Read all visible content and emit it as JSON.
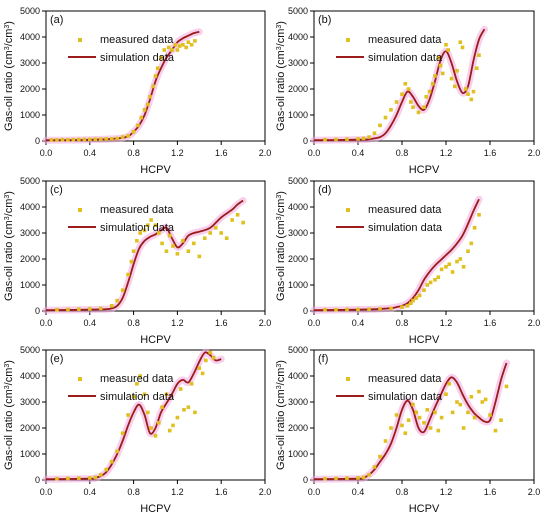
{
  "figure": {
    "x_axis_label": "HCPV",
    "y_axis_label": "Gas-oil ratio (cm",
    "y_axis_label_sup1": "3",
    "y_axis_label_mid": "/cm",
    "y_axis_label_sup2": "3",
    "y_axis_label_end": ")",
    "legend_measured": "measured data",
    "legend_simulation": "simulation data",
    "x_ticks": [
      "0.0",
      "0.4",
      "0.8",
      "1.2",
      "1.6",
      "2.0"
    ],
    "y_ticks": [
      "0",
      "1000",
      "2000",
      "3000",
      "4000",
      "5000"
    ],
    "colors": {
      "measured": "#e0c020",
      "simulation": "#9b1c1c",
      "glow": "#f2a8dc"
    }
  },
  "chart_data": [
    {
      "type": "scatter",
      "panel_label": "(a)",
      "xlabel": "HCPV",
      "ylabel": "Gas-oil ratio (cm3/cm3)",
      "xlim": [
        0,
        2
      ],
      "ylim": [
        0,
        5000
      ],
      "legend_position": "upper-left",
      "series": [
        {
          "name": "measured data",
          "kind": "points",
          "x": [
            0.05,
            0.1,
            0.15,
            0.2,
            0.25,
            0.3,
            0.35,
            0.4,
            0.45,
            0.5,
            0.55,
            0.6,
            0.65,
            0.7,
            0.75,
            0.8,
            0.84,
            0.87,
            0.9,
            0.93,
            0.95,
            0.98,
            1.0,
            1.02,
            1.05,
            1.08,
            1.12,
            1.15,
            1.18,
            1.2,
            1.22,
            1.25,
            1.28,
            1.3,
            1.33,
            1.36
          ],
          "y": [
            40,
            40,
            50,
            50,
            50,
            60,
            60,
            60,
            70,
            70,
            80,
            80,
            100,
            150,
            200,
            350,
            600,
            900,
            1200,
            1400,
            1700,
            2100,
            2500,
            2800,
            3200,
            3500,
            3600,
            3500,
            3700,
            3500,
            3650,
            3700,
            3600,
            3800,
            3700,
            3850
          ]
        },
        {
          "name": "simulation data",
          "kind": "line",
          "x": [
            0,
            0.3,
            0.5,
            0.6,
            0.7,
            0.75,
            0.8,
            0.85,
            0.9,
            0.95,
            1.0,
            1.05,
            1.1,
            1.15,
            1.2,
            1.25,
            1.3,
            1.35,
            1.4
          ],
          "y": [
            30,
            40,
            60,
            80,
            120,
            180,
            350,
            600,
            1000,
            1600,
            2300,
            2800,
            3200,
            3500,
            3800,
            3950,
            4050,
            4150,
            4200
          ]
        }
      ]
    },
    {
      "type": "scatter",
      "panel_label": "(b)",
      "xlabel": "HCPV",
      "ylabel": "Gas-oil ratio (cm3/cm3)",
      "xlim": [
        0,
        2
      ],
      "ylim": [
        0,
        5000
      ],
      "legend_position": "upper-left",
      "series": [
        {
          "name": "measured data",
          "kind": "points",
          "x": [
            0.1,
            0.2,
            0.3,
            0.4,
            0.45,
            0.5,
            0.55,
            0.6,
            0.65,
            0.7,
            0.75,
            0.8,
            0.83,
            0.86,
            0.88,
            0.9,
            0.95,
            1.0,
            1.02,
            1.05,
            1.08,
            1.1,
            1.13,
            1.15,
            1.17,
            1.2,
            1.22,
            1.25,
            1.28,
            1.3,
            1.33,
            1.35,
            1.38,
            1.4,
            1.43,
            1.45,
            1.48,
            1.5
          ],
          "y": [
            50,
            60,
            70,
            80,
            100,
            150,
            300,
            600,
            900,
            1200,
            1500,
            1800,
            2200,
            2000,
            1500,
            1300,
            1100,
            1300,
            1700,
            1900,
            2200,
            2500,
            3200,
            2900,
            2600,
            3700,
            3500,
            2400,
            2100,
            2700,
            3800,
            3600,
            2000,
            1800,
            1600,
            1900,
            2800,
            3300
          ]
        },
        {
          "name": "simulation data",
          "kind": "line",
          "x": [
            0,
            0.4,
            0.5,
            0.6,
            0.65,
            0.7,
            0.75,
            0.8,
            0.85,
            0.9,
            0.95,
            1.0,
            1.05,
            1.1,
            1.15,
            1.2,
            1.25,
            1.3,
            1.35,
            1.4,
            1.45,
            1.5,
            1.55
          ],
          "y": [
            30,
            50,
            70,
            150,
            300,
            600,
            1000,
            1500,
            1900,
            1700,
            1350,
            1200,
            1600,
            2300,
            3100,
            3450,
            3000,
            2300,
            1850,
            2100,
            3100,
            3900,
            4300
          ]
        }
      ]
    },
    {
      "type": "scatter",
      "panel_label": "(c)",
      "xlabel": "HCPV",
      "ylabel": "Gas-oil ratio (cm3/cm3)",
      "xlim": [
        0,
        2
      ],
      "ylim": [
        0,
        5000
      ],
      "legend_position": "upper-left",
      "series": [
        {
          "name": "measured data",
          "kind": "points",
          "x": [
            0.1,
            0.2,
            0.3,
            0.4,
            0.5,
            0.6,
            0.65,
            0.7,
            0.75,
            0.78,
            0.8,
            0.83,
            0.86,
            0.9,
            0.93,
            0.96,
            1.0,
            1.03,
            1.06,
            1.1,
            1.13,
            1.16,
            1.2,
            1.25,
            1.3,
            1.35,
            1.4,
            1.45,
            1.5,
            1.55,
            1.6,
            1.65,
            1.7,
            1.75,
            1.8
          ],
          "y": [
            50,
            60,
            70,
            80,
            100,
            200,
            400,
            800,
            1400,
            1900,
            2300,
            2700,
            3000,
            3100,
            3300,
            3500,
            3300,
            3000,
            2600,
            2300,
            2900,
            2500,
            2200,
            2700,
            2300,
            2600,
            2100,
            2800,
            3000,
            3200,
            3000,
            2800,
            3500,
            3700,
            3400
          ]
        },
        {
          "name": "simulation data",
          "kind": "line",
          "x": [
            0,
            0.5,
            0.6,
            0.65,
            0.7,
            0.75,
            0.8,
            0.85,
            0.9,
            0.95,
            1.0,
            1.05,
            1.1,
            1.15,
            1.2,
            1.25,
            1.3,
            1.35,
            1.4,
            1.5,
            1.6,
            1.7,
            1.75,
            1.8
          ],
          "y": [
            30,
            60,
            100,
            200,
            500,
            1100,
            1800,
            2400,
            2700,
            2850,
            2950,
            3100,
            3200,
            2800,
            2450,
            2600,
            2900,
            3000,
            3050,
            3200,
            3600,
            3900,
            4100,
            4250
          ]
        }
      ]
    },
    {
      "type": "scatter",
      "panel_label": "(d)",
      "xlabel": "HCPV",
      "ylabel": "Gas-oil ratio (cm3/cm3)",
      "xlim": [
        0,
        2
      ],
      "ylim": [
        0,
        5000
      ],
      "legend_position": "upper-left",
      "series": [
        {
          "name": "measured data",
          "kind": "points",
          "x": [
            0.1,
            0.2,
            0.3,
            0.4,
            0.5,
            0.6,
            0.7,
            0.8,
            0.85,
            0.88,
            0.9,
            0.93,
            0.96,
            1.0,
            1.03,
            1.06,
            1.1,
            1.13,
            1.16,
            1.2,
            1.23,
            1.26,
            1.3,
            1.33,
            1.36,
            1.4,
            1.43,
            1.46,
            1.5
          ],
          "y": [
            50,
            50,
            60,
            60,
            70,
            80,
            100,
            150,
            200,
            300,
            400,
            500,
            600,
            800,
            1000,
            1100,
            1200,
            1300,
            1600,
            1700,
            1800,
            1500,
            1900,
            2000,
            1700,
            2300,
            2600,
            3200,
            3700
          ]
        },
        {
          "name": "simulation data",
          "kind": "line",
          "x": [
            0,
            0.5,
            0.6,
            0.7,
            0.75,
            0.8,
            0.85,
            0.9,
            0.95,
            1.0,
            1.05,
            1.1,
            1.15,
            1.2,
            1.25,
            1.3,
            1.35,
            1.4,
            1.45,
            1.5
          ],
          "y": [
            30,
            60,
            80,
            110,
            150,
            200,
            300,
            500,
            800,
            1200,
            1500,
            1750,
            1950,
            2150,
            2350,
            2600,
            2900,
            3350,
            3850,
            4300
          ]
        }
      ]
    },
    {
      "type": "scatter",
      "panel_label": "(e)",
      "xlabel": "HCPV",
      "ylabel": "Gas-oil ratio (cm3/cm3)",
      "xlim": [
        0,
        2
      ],
      "ylim": [
        0,
        5000
      ],
      "legend_position": "upper-left",
      "series": [
        {
          "name": "measured data",
          "kind": "points",
          "x": [
            0.1,
            0.2,
            0.3,
            0.4,
            0.45,
            0.5,
            0.55,
            0.6,
            0.65,
            0.7,
            0.75,
            0.8,
            0.83,
            0.86,
            0.9,
            0.93,
            0.96,
            1.0,
            1.03,
            1.06,
            1.1,
            1.13,
            1.16,
            1.2,
            1.23,
            1.26,
            1.3,
            1.33,
            1.36,
            1.4,
            1.43,
            1.46,
            1.5,
            1.53
          ],
          "y": [
            50,
            60,
            70,
            80,
            100,
            200,
            400,
            700,
            1100,
            1800,
            2500,
            3200,
            3700,
            4000,
            3300,
            2600,
            2000,
            1700,
            2200,
            2800,
            3300,
            1900,
            2100,
            2400,
            3500,
            2700,
            2800,
            3700,
            2600,
            4300,
            4100,
            4600,
            4900,
            4700
          ]
        },
        {
          "name": "simulation data",
          "kind": "line",
          "x": [
            0,
            0.4,
            0.45,
            0.5,
            0.55,
            0.6,
            0.65,
            0.7,
            0.75,
            0.8,
            0.85,
            0.9,
            0.95,
            1.0,
            1.05,
            1.1,
            1.15,
            1.2,
            1.25,
            1.3,
            1.35,
            1.4,
            1.45,
            1.5,
            1.55,
            1.6
          ],
          "y": [
            30,
            50,
            80,
            150,
            300,
            600,
            1000,
            1500,
            2100,
            2600,
            2900,
            2500,
            1800,
            2000,
            2600,
            2950,
            3300,
            3700,
            3850,
            3750,
            4100,
            4550,
            4900,
            4800,
            4600,
            4650
          ]
        }
      ]
    },
    {
      "type": "scatter",
      "panel_label": "(f)",
      "xlabel": "HCPV",
      "ylabel": "Gas-oil ratio (cm3/cm3)",
      "xlim": [
        0,
        2
      ],
      "ylim": [
        0,
        5000
      ],
      "legend_position": "upper-left",
      "series": [
        {
          "name": "measured data",
          "kind": "points",
          "x": [
            0.1,
            0.2,
            0.3,
            0.4,
            0.45,
            0.5,
            0.55,
            0.6,
            0.65,
            0.7,
            0.75,
            0.8,
            0.83,
            0.86,
            0.9,
            0.93,
            0.96,
            1.0,
            1.03,
            1.06,
            1.1,
            1.13,
            1.16,
            1.2,
            1.23,
            1.26,
            1.3,
            1.33,
            1.36,
            1.4,
            1.43,
            1.46,
            1.5,
            1.53,
            1.56,
            1.6,
            1.65,
            1.7,
            1.75
          ],
          "y": [
            50,
            60,
            70,
            80,
            100,
            200,
            500,
            900,
            1500,
            2000,
            2500,
            2100,
            1800,
            2300,
            2900,
            2600,
            2400,
            2200,
            2700,
            2000,
            2600,
            1900,
            2400,
            3300,
            3700,
            2600,
            3000,
            2900,
            2000,
            2600,
            3200,
            2400,
            3400,
            3000,
            3100,
            2500,
            1900,
            2300,
            3600
          ]
        },
        {
          "name": "simulation data",
          "kind": "line",
          "x": [
            0,
            0.4,
            0.45,
            0.5,
            0.55,
            0.6,
            0.65,
            0.7,
            0.75,
            0.8,
            0.85,
            0.9,
            0.95,
            1.0,
            1.05,
            1.1,
            1.15,
            1.2,
            1.25,
            1.3,
            1.35,
            1.4,
            1.45,
            1.5,
            1.55,
            1.6,
            1.65,
            1.7,
            1.75
          ],
          "y": [
            30,
            50,
            80,
            200,
            400,
            700,
            1000,
            1400,
            2000,
            2700,
            3050,
            2700,
            2000,
            1850,
            2300,
            2800,
            3250,
            3700,
            3950,
            3750,
            3300,
            2900,
            2600,
            2400,
            2250,
            2300,
            3000,
            3850,
            4500
          ]
        }
      ]
    }
  ]
}
